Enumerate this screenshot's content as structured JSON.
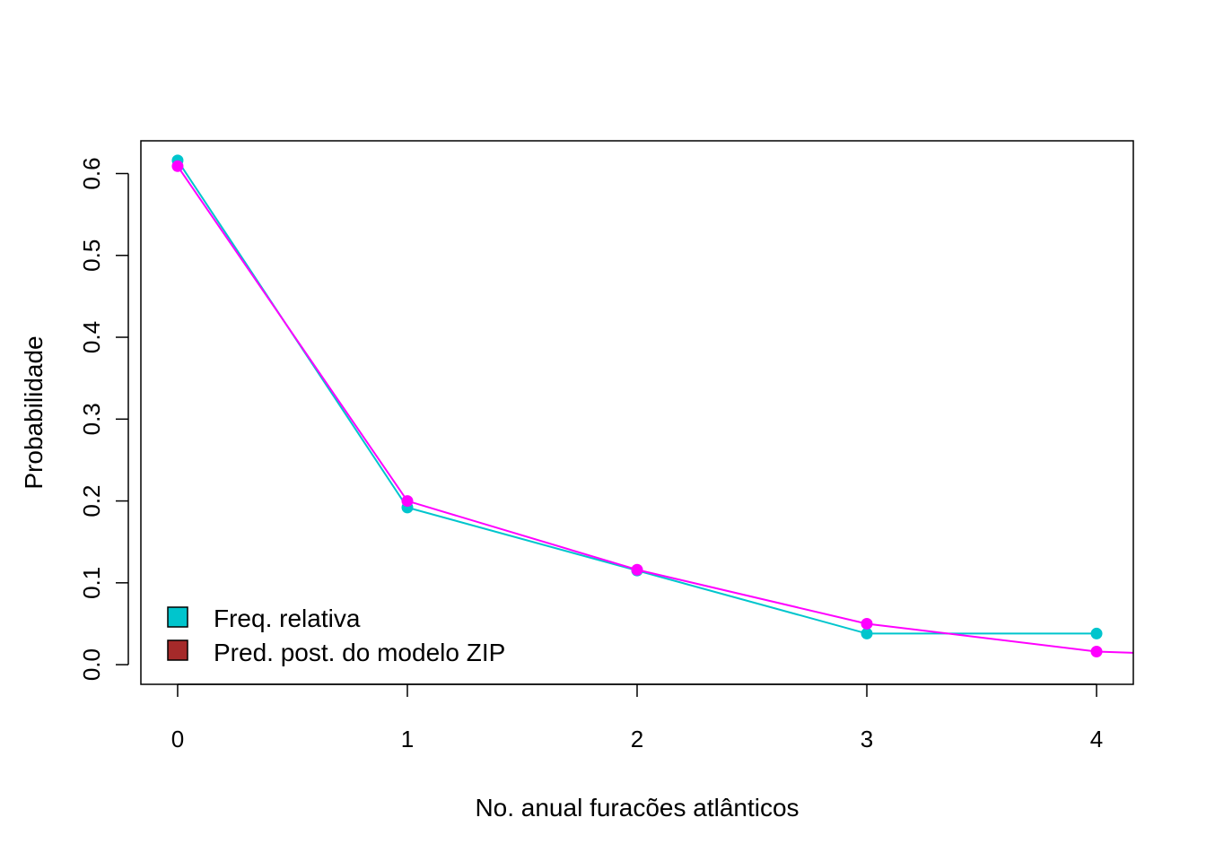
{
  "chart_data": {
    "type": "line",
    "title": "",
    "xlabel": "No. anual furacões atlânticos",
    "ylabel": "Probabilidade",
    "x": [
      0,
      1,
      2,
      3,
      4
    ],
    "xlim": [
      -0.16,
      4.16
    ],
    "ylim": [
      -0.024,
      0.64
    ],
    "x_ticks": [
      "0",
      "1",
      "2",
      "3",
      "4"
    ],
    "y_ticks": [
      "0.0",
      "0.1",
      "0.2",
      "0.3",
      "0.4",
      "0.5",
      "0.6"
    ],
    "grid": false,
    "legend_position": "bottom-left",
    "series": [
      {
        "name": "Freq. relativa",
        "line_color": "#00C5CD",
        "legend_fill": "#00C5CD",
        "values": [
          0.616,
          0.192,
          0.115,
          0.038,
          0.038
        ]
      },
      {
        "name": "Pred. post. do modelo ZIP",
        "line_color": "#FF00FF",
        "legend_fill": "#A52A2A",
        "values": [
          0.609,
          0.2,
          0.116,
          0.05,
          0.016
        ],
        "extension": {
          "x": 4.16,
          "y": 0.0145
        }
      }
    ]
  }
}
